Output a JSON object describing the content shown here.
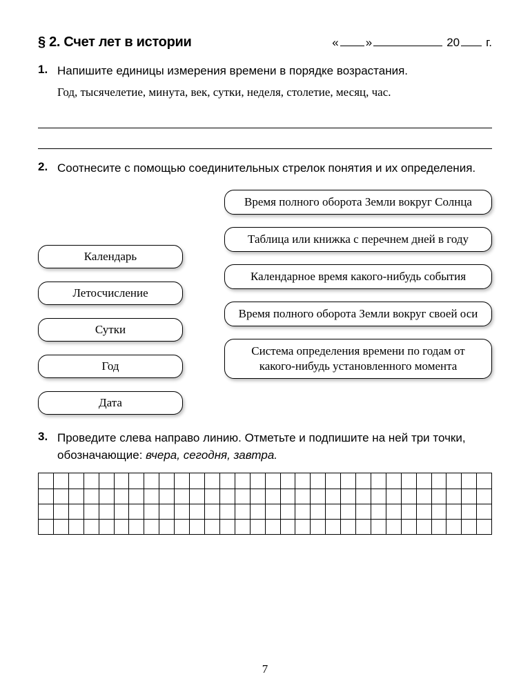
{
  "header": {
    "section_title": "§ 2. Счет лет в истории",
    "date_quote_open": "«",
    "date_quote_close": "»",
    "date_year_prefix": "20",
    "date_year_suffix": "г."
  },
  "task1": {
    "num": "1.",
    "prompt": "Напишите единицы измерения времени в порядке возрастания.",
    "list": "Год, тысячелетие, минута, век, сутки, неделя, столетие, месяц, час.",
    "answer_lines": 2
  },
  "task2": {
    "num": "2.",
    "prompt": "Соотнесите с помощью соединительных стрелок понятия и их определения.",
    "left_items": [
      "Календарь",
      "Летосчисление",
      "Сутки",
      "Год",
      "Дата"
    ],
    "right_items": [
      "Время полного оборота Земли вокруг Солнца",
      "Таблица или книжка с перечнем дней в году",
      "Календарное время какого-нибудь события",
      "Время полного оборота Земли вокруг своей оси",
      "Система определения времени по годам от какого-нибудь установленного момента"
    ],
    "pill_border_color": "#000000",
    "pill_shadow_color": "rgba(0,0,0,0.25)"
  },
  "task3": {
    "num": "3.",
    "prompt_plain": "Проведите слева направо линию. Отметьте и подпишите на ней три точки, обозначающие: ",
    "prompt_italic": "вчера, сегодня, завтра.",
    "grid_rows": 4,
    "grid_cols": 30
  },
  "page_number": "7",
  "colors": {
    "text": "#000000",
    "background": "#ffffff",
    "border": "#000000"
  }
}
